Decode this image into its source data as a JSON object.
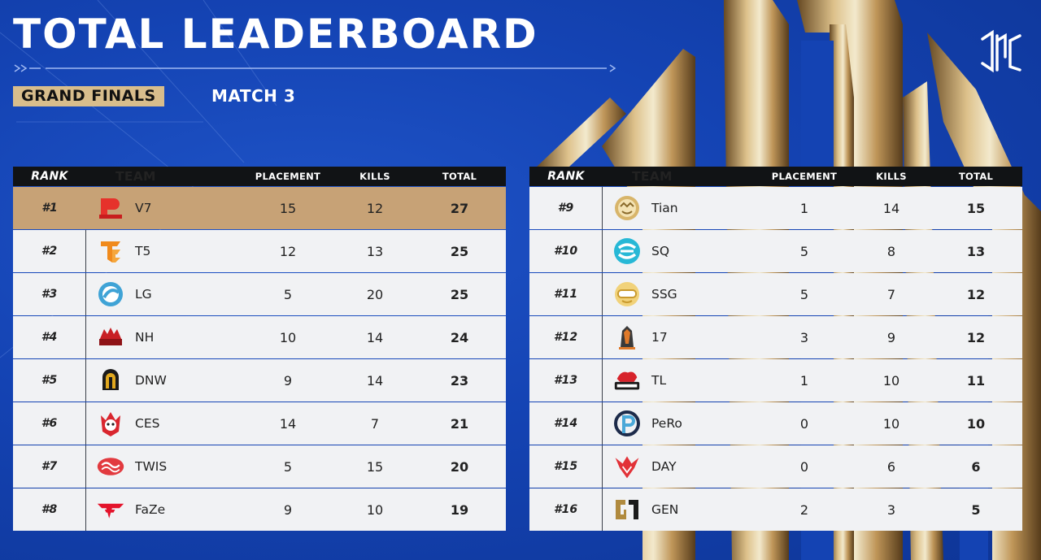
{
  "header": {
    "title": "TOTAL LEADERBOARD",
    "stage": "GRAND FINALS",
    "match": "MATCH 3",
    "logo_icon": "pgc-logo-icon"
  },
  "columns": {
    "rank": "RANK",
    "team": "TEAM",
    "placement": "PLACEMENT",
    "kills": "KILLS",
    "total": "TOTAL"
  },
  "colors": {
    "background": "#1443b3",
    "gold": "#c7a276",
    "header": "#111315",
    "row": "#f1f2f4"
  },
  "left_rows": [
    {
      "rank": "#1",
      "team": "V7",
      "placement": "15",
      "kills": "12",
      "total": "27",
      "icon": "v7-logo-icon"
    },
    {
      "rank": "#2",
      "team": "T5",
      "placement": "12",
      "kills": "13",
      "total": "25",
      "icon": "t5-logo-icon"
    },
    {
      "rank": "#3",
      "team": "LG",
      "placement": "5",
      "kills": "20",
      "total": "25",
      "icon": "lg-logo-icon"
    },
    {
      "rank": "#4",
      "team": "NH",
      "placement": "10",
      "kills": "14",
      "total": "24",
      "icon": "nh-logo-icon"
    },
    {
      "rank": "#5",
      "team": "DNW",
      "placement": "9",
      "kills": "14",
      "total": "23",
      "icon": "dnw-logo-icon"
    },
    {
      "rank": "#6",
      "team": "CES",
      "placement": "14",
      "kills": "7",
      "total": "21",
      "icon": "ces-logo-icon"
    },
    {
      "rank": "#7",
      "team": "TWIS",
      "placement": "5",
      "kills": "15",
      "total": "20",
      "icon": "twis-logo-icon"
    },
    {
      "rank": "#8",
      "team": "FaZe",
      "placement": "9",
      "kills": "10",
      "total": "19",
      "icon": "faze-logo-icon"
    }
  ],
  "right_rows": [
    {
      "rank": "#9",
      "team": "Tian",
      "placement": "1",
      "kills": "14",
      "total": "15",
      "icon": "tian-logo-icon"
    },
    {
      "rank": "#10",
      "team": "SQ",
      "placement": "5",
      "kills": "8",
      "total": "13",
      "icon": "sq-logo-icon"
    },
    {
      "rank": "#11",
      "team": "SSG",
      "placement": "5",
      "kills": "7",
      "total": "12",
      "icon": "ssg-logo-icon"
    },
    {
      "rank": "#12",
      "team": "17",
      "placement": "3",
      "kills": "9",
      "total": "12",
      "icon": "17-logo-icon"
    },
    {
      "rank": "#13",
      "team": "TL",
      "placement": "1",
      "kills": "10",
      "total": "11",
      "icon": "tl-logo-icon"
    },
    {
      "rank": "#14",
      "team": "PeRo",
      "placement": "0",
      "kills": "10",
      "total": "10",
      "icon": "pero-logo-icon"
    },
    {
      "rank": "#15",
      "team": "DAY",
      "placement": "0",
      "kills": "6",
      "total": "6",
      "icon": "day-logo-icon"
    },
    {
      "rank": "#16",
      "team": "GEN",
      "placement": "2",
      "kills": "3",
      "total": "5",
      "icon": "gen-logo-icon"
    }
  ]
}
